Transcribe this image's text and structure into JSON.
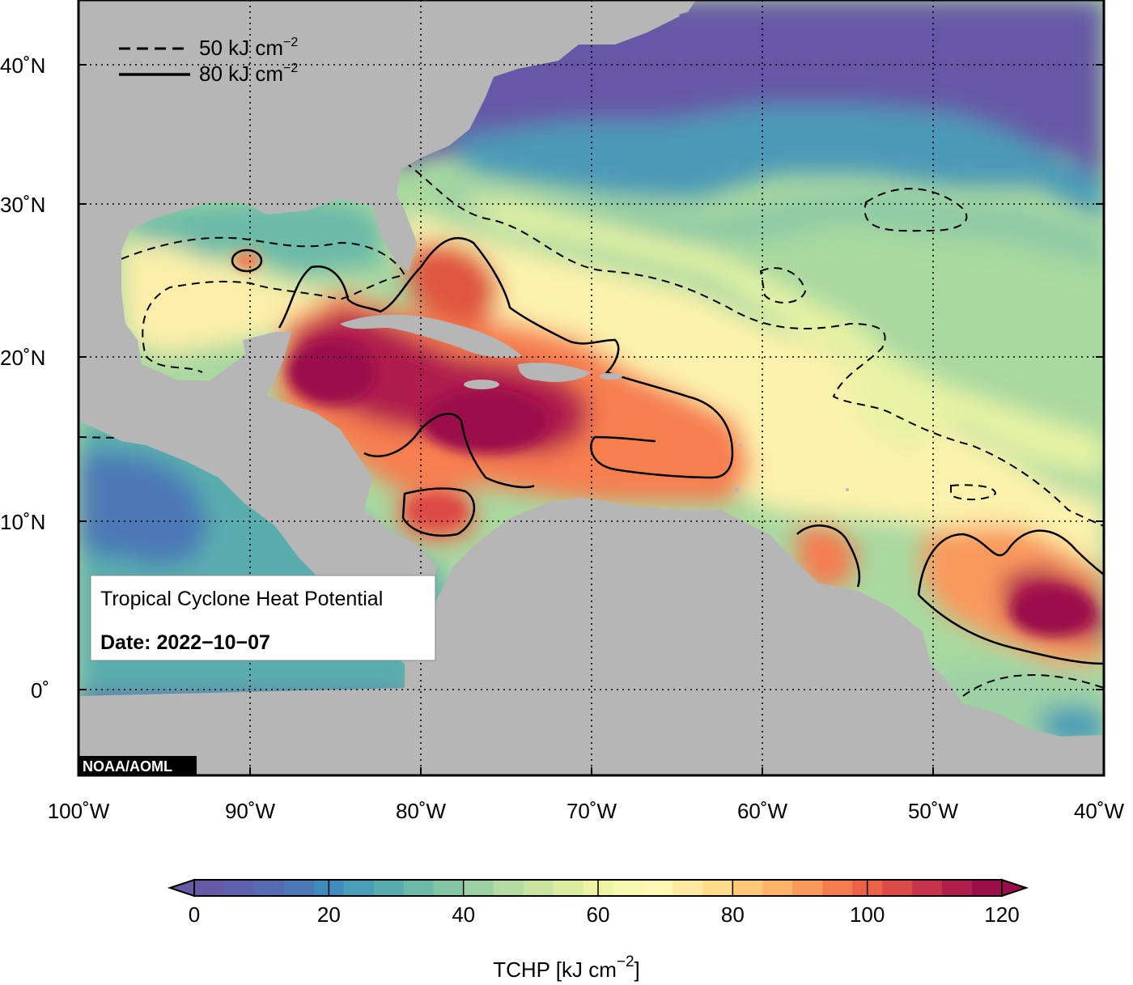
{
  "map": {
    "title_line1": "Tropical Cyclone Heat Potential",
    "date_label": "Date: 2022−10−07",
    "credit": "NOAA/AOML",
    "legend": {
      "dashed_label": "50 kJ cm",
      "dashed_exp": "−2",
      "solid_label": "80 kJ cm",
      "solid_exp": "−2"
    },
    "lat_labels": [
      "40˚N",
      "30˚N",
      "20˚N",
      "10˚N",
      "0˚"
    ],
    "lon_labels": [
      "100˚W",
      "90˚W",
      "80˚W",
      "70˚W",
      "60˚W",
      "50˚W",
      "40˚W"
    ],
    "colorbar": {
      "title": "TCHP [kJ cm",
      "title_exp": "−2",
      "title_end": "]",
      "ticks": [
        "0",
        "20",
        "40",
        "60",
        "80",
        "100",
        "120"
      ],
      "colors": [
        "#6659a6",
        "#5f62ad",
        "#566bb2",
        "#4c79b6",
        "#3f8bbb",
        "#4a9db7",
        "#5aadaf",
        "#6cbaa8",
        "#84c5a5",
        "#9dd1a4",
        "#b4dba3",
        "#c9e4a0",
        "#dceda1",
        "#ebf3a4",
        "#f6f8b1",
        "#fcf5b4",
        "#fee9a0",
        "#fedb8b",
        "#fdc878",
        "#fcb369",
        "#f99a5d",
        "#f47d4f",
        "#ea6146",
        "#dc4a47",
        "#c7334a",
        "#b01e4d",
        "#9c0f4b"
      ],
      "under_color": "#6659a6",
      "over_color": "#9c0f4b"
    },
    "colors": {
      "land": "#b6b6b6",
      "cold": "#6659a6",
      "ocean_mid": "#a6d6a0",
      "warm": "#fdeca2",
      "hot": "#9c0f4b"
    }
  }
}
